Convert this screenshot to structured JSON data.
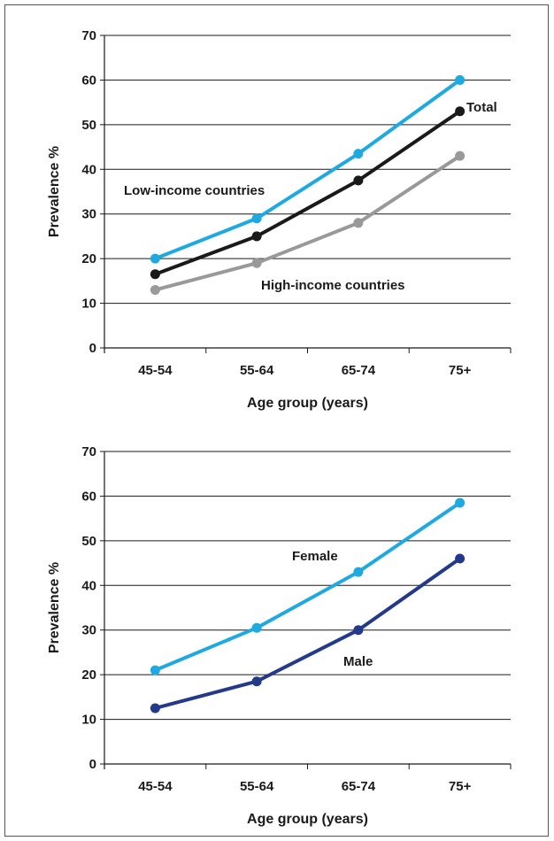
{
  "chart_data": [
    {
      "type": "line",
      "xlabel": "Age group (years)",
      "ylabel": "Prevalence %",
      "ylim": [
        0,
        70
      ],
      "yticks": [
        0,
        10,
        20,
        30,
        40,
        50,
        60,
        70
      ],
      "categories": [
        "45-54",
        "55-64",
        "65-74",
        "75+"
      ],
      "grid": "horizontal",
      "series": [
        {
          "name": "Low-income countries",
          "color": "#1ea9e1",
          "values": [
            20,
            29,
            43.5,
            60
          ]
        },
        {
          "name": "Total",
          "color": "#1a1a1a",
          "values": [
            16.5,
            25,
            37.5,
            53
          ]
        },
        {
          "name": "High-income countries",
          "color": "#999999",
          "values": [
            13,
            19,
            28,
            43
          ]
        }
      ]
    },
    {
      "type": "line",
      "xlabel": "Age group (years)",
      "ylabel": "Prevalence %",
      "ylim": [
        0,
        70
      ],
      "yticks": [
        0,
        10,
        20,
        30,
        40,
        50,
        60,
        70
      ],
      "categories": [
        "45-54",
        "55-64",
        "65-74",
        "75+"
      ],
      "grid": "horizontal",
      "series": [
        {
          "name": "Female",
          "color": "#1ea9e1",
          "values": [
            21,
            30.5,
            43,
            58.5
          ]
        },
        {
          "name": "Male",
          "color": "#233a8b",
          "values": [
            12.5,
            18.5,
            30,
            46
          ]
        }
      ]
    }
  ]
}
